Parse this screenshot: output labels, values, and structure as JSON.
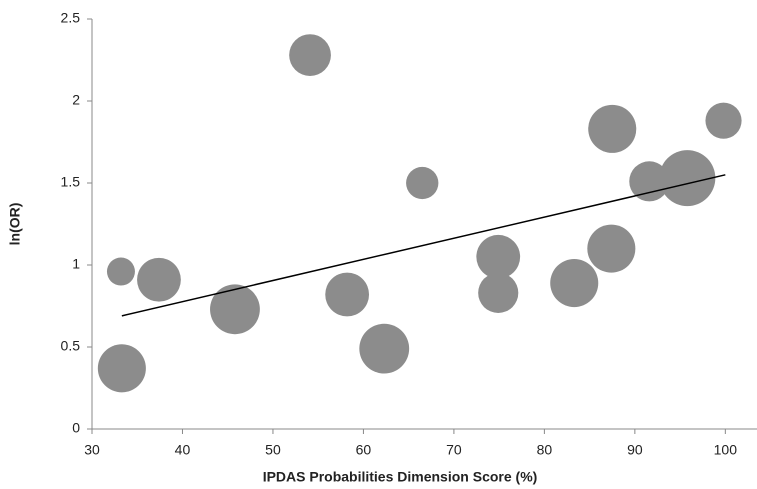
{
  "chart_data": {
    "type": "bubble",
    "x_label": "IPDAS Probabilities Dimension Score (%)",
    "y_label": "ln(OR)",
    "x": [
      33.2,
      37.4,
      33.3,
      45.8,
      54.1,
      58.2,
      62.3,
      66.5,
      74.9,
      74.9,
      83.3,
      87.4,
      87.5,
      91.6,
      95.8,
      99.8
    ],
    "y": [
      0.96,
      0.91,
      0.37,
      0.73,
      2.28,
      0.82,
      0.49,
      1.5,
      1.05,
      0.83,
      0.89,
      1.1,
      1.83,
      1.51,
      1.53,
      1.88
    ],
    "sizes": [
      18,
      44,
      53,
      57,
      40,
      44,
      57,
      24,
      44,
      37,
      53,
      53,
      53,
      37,
      72,
      30
    ],
    "color": "#8c8c8c",
    "trendline": {
      "x": [
        33.3,
        100
      ],
      "y": [
        0.69,
        1.55
      ],
      "color": "#000000"
    },
    "xlim": [
      30,
      103.5
    ],
    "xticks": [
      30,
      40,
      50,
      60,
      70,
      80,
      90,
      100
    ],
    "ylim": [
      0,
      2.5
    ],
    "yticks": [
      0,
      0.5,
      1,
      1.5,
      2,
      2.5
    ],
    "grid": false
  }
}
